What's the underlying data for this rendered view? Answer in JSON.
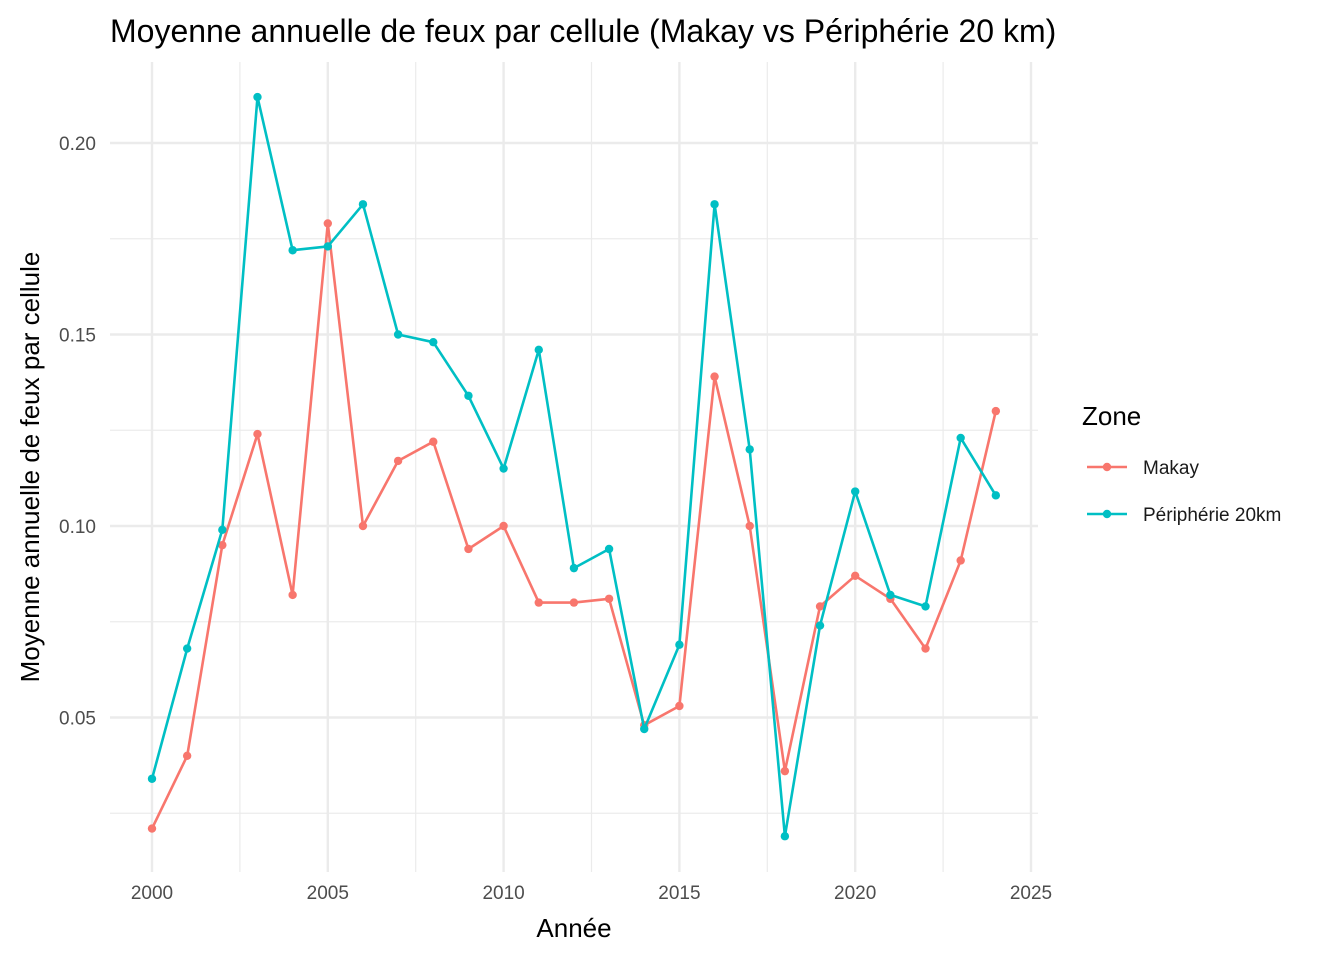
{
  "chart_data": {
    "type": "line",
    "title": "Moyenne annuelle de feux par cellule (Makay vs Périphérie 20 km)",
    "xlabel": "Année",
    "ylabel": "Moyenne annuelle de feux par cellule",
    "x": [
      2000,
      2001,
      2002,
      2003,
      2004,
      2005,
      2006,
      2007,
      2008,
      2009,
      2010,
      2011,
      2012,
      2013,
      2014,
      2015,
      2016,
      2017,
      2018,
      2019,
      2020,
      2021,
      2022,
      2023,
      2024
    ],
    "xlim": [
      2000,
      2025
    ],
    "ylim": [
      0.02,
      0.21
    ],
    "x_ticks": [
      2000,
      2005,
      2010,
      2015,
      2020,
      2025
    ],
    "y_ticks": [
      0.05,
      0.1,
      0.15,
      0.2
    ],
    "y_tick_labels": [
      "0.05",
      "0.10",
      "0.15",
      "0.20"
    ],
    "grid": true,
    "legend_title": "Zone",
    "legend_position": "right",
    "series": [
      {
        "name": "Makay",
        "color": "#F8766D",
        "values": [
          0.021,
          0.04,
          0.095,
          0.124,
          0.082,
          0.179,
          0.1,
          0.117,
          0.122,
          0.094,
          0.1,
          0.08,
          0.08,
          0.081,
          0.048,
          0.053,
          0.139,
          0.1,
          0.036,
          0.079,
          0.087,
          0.081,
          0.068,
          0.091,
          0.13
        ]
      },
      {
        "name": "Périphérie 20km",
        "color": "#00BFC4",
        "values": [
          0.034,
          0.068,
          0.099,
          0.212,
          0.172,
          0.173,
          0.184,
          0.15,
          0.148,
          0.134,
          0.115,
          0.146,
          0.089,
          0.094,
          0.047,
          0.069,
          0.184,
          0.12,
          0.019,
          0.074,
          0.109,
          0.082,
          0.079,
          0.123,
          0.108
        ]
      }
    ]
  }
}
